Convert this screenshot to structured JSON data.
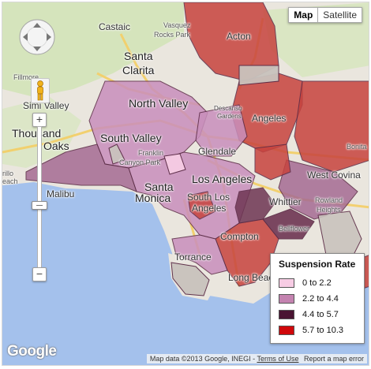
{
  "map_type": {
    "map_label": "Map",
    "satellite_label": "Satellite",
    "active": "Map"
  },
  "places": {
    "castaic": "Castaic",
    "vasquez": "Vasquez",
    "rocks_park": "Rocks Park",
    "acton": "Acton",
    "fillmore": "Fillmore",
    "santa": "Santa",
    "clarita": "Clarita",
    "simi_valley": "Simi Valley",
    "north_valley": "North Valley",
    "thousand": "Thousand",
    "oaks": "Oaks",
    "south_valley": "South Valley",
    "franklin": "Franklin",
    "canyon_park": "Canyon Park",
    "glendale": "Glendale",
    "angeles": "Angeles",
    "malibu": "Malibu",
    "santa_monica_1": "Santa",
    "santa_monica_2": "Monica",
    "los_angeles": "Los Angeles",
    "south_la_1": "South Los",
    "south_la_2": "Angeles",
    "whittier": "Whittier",
    "west_covina": "West Covina",
    "rowland": "Rowland",
    "heights": "Heights",
    "bonita": "Bonita",
    "compton": "Compton",
    "bellflower": "Bellflower",
    "torrance": "Torrance",
    "long_beach": "Long Beach",
    "cabrillo": "rillo",
    "beach": "each",
    "descanso": "Descanso",
    "gardens": "Gardens"
  },
  "legend": {
    "title": "Suspension Rate",
    "items": [
      {
        "label": "0 to 2.2",
        "color": "#f7cce4"
      },
      {
        "label": "2.2 to 4.4",
        "color": "#c483b0"
      },
      {
        "label": "4.4 to 5.7",
        "color": "#4a1432"
      },
      {
        "label": "5.7 to 10.3",
        "color": "#d0080b"
      }
    ]
  },
  "logo": "Google",
  "attribution": {
    "text": "Map data ©2013 Google, INEGI -",
    "terms": "Terms of Use",
    "report": "Report a map error"
  },
  "colors": {
    "ocean": "#a4c1ec",
    "land": "#eae6de",
    "park": "#cde4b0",
    "road": "#f7d87a",
    "district_light": "#c98fbc",
    "district_mid": "#a56b93",
    "district_dark": "#6e3553",
    "district_red": "#c7433e",
    "district_gray": "#c9c3bd"
  }
}
